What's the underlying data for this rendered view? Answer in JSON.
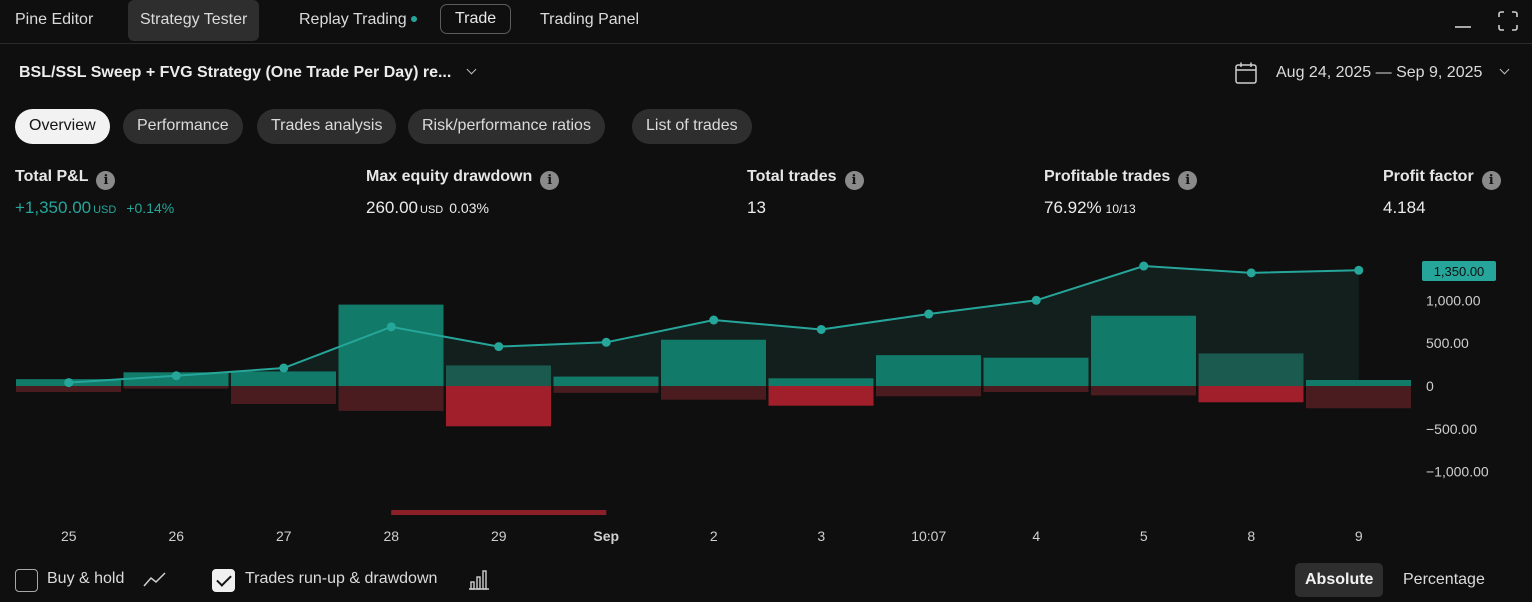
{
  "top_tabs": {
    "pine_editor": "Pine Editor",
    "strategy_tester": "Strategy Tester",
    "replay_trading": "Replay Trading",
    "trade": "Trade",
    "trading_panel": "Trading Panel"
  },
  "strategy": {
    "title": "BSL/SSL Sweep + FVG Strategy (One Trade Per Day) re...",
    "date_range": "Aug 24, 2025 — Sep 9, 2025"
  },
  "sub_tabs": [
    "Overview",
    "Performance",
    "Trades analysis",
    "Risk/performance ratios",
    "List of trades"
  ],
  "metrics": {
    "total_pnl": {
      "label": "Total P&L",
      "value": "+1,350.00",
      "unit": "USD",
      "pct": "+0.14%"
    },
    "max_dd": {
      "label": "Max equity drawdown",
      "value": "260.00",
      "unit": "USD",
      "pct": "0.03%"
    },
    "total_trades": {
      "label": "Total trades",
      "value": "13"
    },
    "profitable": {
      "label": "Profitable trades",
      "value": "76.92%",
      "sub": "10/13"
    },
    "profit_factor": {
      "label": "Profit factor",
      "value": "4.184"
    }
  },
  "colors": {
    "accent_green": "#26a69a",
    "bar_green": "#127a68",
    "bar_red": "#a01f2b",
    "bar_dark_red": "#4a1c20",
    "background": "#0f0f0f"
  },
  "chart_data": {
    "type": "line",
    "categories": [
      "25",
      "26",
      "27",
      "28",
      "29",
      "Sep",
      "2",
      "3",
      "10:07",
      "4",
      "5",
      "8",
      "9"
    ],
    "equity": [
      40,
      120,
      210,
      690,
      460,
      510,
      770,
      660,
      840,
      1000,
      1400,
      1320,
      1350
    ],
    "runup": [
      80,
      160,
      170,
      950,
      240,
      110,
      540,
      90,
      360,
      330,
      820,
      380,
      70
    ],
    "drawdown": [
      -70,
      -30,
      -210,
      -290,
      -470,
      -80,
      -160,
      -230,
      -120,
      -70,
      -110,
      -190,
      -260
    ],
    "drawdown_severe": [
      false,
      false,
      false,
      false,
      true,
      false,
      false,
      true,
      false,
      false,
      false,
      true,
      false
    ],
    "runup_faded": [
      false,
      false,
      false,
      false,
      true,
      false,
      false,
      false,
      false,
      false,
      false,
      true,
      false
    ],
    "y_ticks": [
      "1,000.00",
      "500.00",
      "0",
      "−500.00",
      "−1,000.00"
    ],
    "y_tick_values": [
      1000,
      500,
      0,
      -500,
      -1000
    ],
    "last_value_label": "1,350.00",
    "ylim": [
      -1000,
      1350
    ],
    "bold_category": "Sep",
    "max_drawdown_span": [
      "28",
      "Sep"
    ]
  },
  "bottom": {
    "buy_hold": "Buy & hold",
    "trades_runup": "Trades run-up & drawdown",
    "absolute": "Absolute",
    "percentage": "Percentage"
  }
}
